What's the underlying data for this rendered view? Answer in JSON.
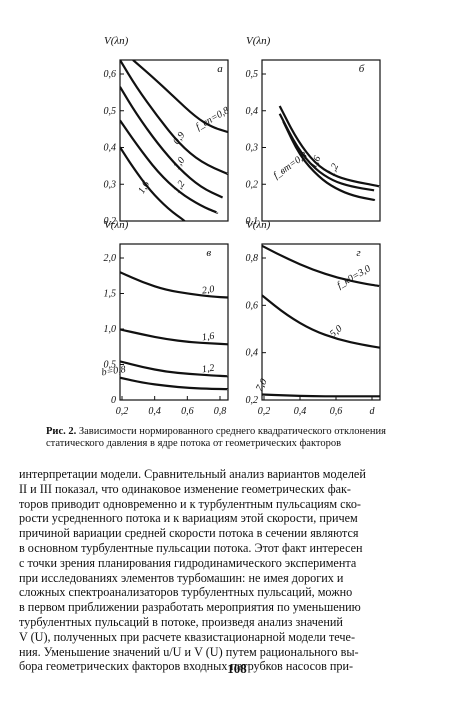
{
  "chart_data": [
    {
      "type": "line",
      "panel": "a",
      "ylabel": "V(λп)",
      "y_ticks": [
        "0,6",
        "0,5",
        "0,4",
        "0,3",
        "0,2"
      ],
      "ylim": [
        0.2,
        0.68
      ],
      "x_ticks": [],
      "xlim": [
        0.0,
        1.0
      ],
      "series": [
        {
          "name": "f_вп=0,8",
          "label": "f_вп=0,8",
          "x": [
            0.12,
            0.3,
            0.5,
            0.7,
            0.85,
            1.0
          ],
          "y": [
            0.68,
            0.63,
            0.57,
            0.51,
            0.48,
            0.465
          ]
        },
        {
          "name": "0,9",
          "label": "0,9",
          "x": [
            0.0,
            0.15,
            0.35,
            0.55,
            0.75,
            1.0
          ],
          "y": [
            0.68,
            0.6,
            0.51,
            0.43,
            0.375,
            0.34
          ]
        },
        {
          "name": "1,0",
          "label": "1,0",
          "x": [
            0.0,
            0.15,
            0.35,
            0.55,
            0.75,
            0.95
          ],
          "y": [
            0.6,
            0.52,
            0.43,
            0.355,
            0.3,
            0.27
          ]
        },
        {
          "name": "1,2",
          "label": "1,2",
          "x": [
            0.0,
            0.15,
            0.35,
            0.55,
            0.75,
            0.9
          ],
          "y": [
            0.5,
            0.43,
            0.345,
            0.285,
            0.245,
            0.225
          ]
        },
        {
          "name": "1,6",
          "label": "1,6",
          "x": [
            0.0,
            0.12,
            0.28,
            0.45,
            0.6
          ],
          "y": [
            0.42,
            0.36,
            0.29,
            0.235,
            0.2
          ]
        }
      ]
    },
    {
      "type": "line",
      "panel": "б",
      "ylabel": "V(λп)",
      "y_ticks": [
        "0,5",
        "0,4",
        "0,3",
        "0,2",
        "0,1"
      ],
      "ylim": [
        0.1,
        0.52
      ],
      "x_ticks": [],
      "xlim": [
        0.0,
        1.0
      ],
      "series": [
        {
          "name": "1,2",
          "label": "1,2",
          "x": [
            0.15,
            0.3,
            0.45,
            0.6,
            0.75,
            1.0
          ],
          "y": [
            0.4,
            0.31,
            0.25,
            0.22,
            0.205,
            0.19
          ]
        },
        {
          "name": "1,6",
          "label": "1,6",
          "x": [
            0.15,
            0.3,
            0.45,
            0.6,
            0.75,
            0.95
          ],
          "y": [
            0.38,
            0.29,
            0.235,
            0.205,
            0.19,
            0.18
          ]
        },
        {
          "name": "f_вт=0,8",
          "label": "f_вт=0,8",
          "x": [
            0.18,
            0.32,
            0.48,
            0.62,
            0.78,
            0.95
          ],
          "y": [
            0.36,
            0.27,
            0.215,
            0.185,
            0.165,
            0.155
          ]
        }
      ]
    },
    {
      "type": "line",
      "panel": "в",
      "ylabel": "V(λп)",
      "y_ticks": [
        "2,0",
        "1,5",
        "1,0",
        "0,5",
        "0"
      ],
      "ylim": [
        0,
        2.1
      ],
      "x_ticks": [
        "0,2",
        "0,4",
        "0,6",
        "0,8"
      ],
      "xlim": [
        0.15,
        0.85
      ],
      "series": [
        {
          "name": "2,0",
          "label": "2,0",
          "x": [
            0.15,
            0.3,
            0.45,
            0.6,
            0.75,
            0.85
          ],
          "y": [
            1.72,
            1.58,
            1.48,
            1.43,
            1.39,
            1.38
          ]
        },
        {
          "name": "1,6",
          "label": "1,6",
          "x": [
            0.15,
            0.3,
            0.45,
            0.6,
            0.75,
            0.85
          ],
          "y": [
            0.95,
            0.88,
            0.82,
            0.78,
            0.76,
            0.75
          ]
        },
        {
          "name": "1,2",
          "label": "1,2",
          "x": [
            0.15,
            0.3,
            0.45,
            0.6,
            0.75,
            0.85
          ],
          "y": [
            0.52,
            0.44,
            0.38,
            0.35,
            0.33,
            0.32
          ]
        },
        {
          "name": "b=0,8",
          "label": "b=0,8",
          "x": [
            0.15,
            0.3,
            0.45,
            0.6,
            0.75,
            0.85
          ],
          "y": [
            0.3,
            0.23,
            0.19,
            0.16,
            0.15,
            0.145
          ]
        }
      ]
    },
    {
      "type": "line",
      "panel": "г",
      "ylabel": "V(λп)",
      "y_ticks": [
        "0,8",
        "0,6",
        "0,4",
        "0,2"
      ],
      "ylim": [
        0,
        0.85
      ],
      "x_ticks": [
        "0,2",
        "0,4",
        "0,6",
        "d"
      ],
      "xlim": [
        0.15,
        0.85
      ],
      "series": [
        {
          "name": "f_к0=3,0",
          "label": "f_к0=3,0",
          "x": [
            0.15,
            0.3,
            0.45,
            0.6,
            0.75,
            0.85
          ],
          "y": [
            0.84,
            0.77,
            0.71,
            0.665,
            0.635,
            0.62
          ]
        },
        {
          "name": "5,0",
          "label": "5,0",
          "x": [
            0.15,
            0.3,
            0.45,
            0.6,
            0.75,
            0.85
          ],
          "y": [
            0.57,
            0.46,
            0.38,
            0.33,
            0.3,
            0.285
          ]
        },
        {
          "name": "7,0",
          "label": "7,0",
          "x": [
            0.15,
            0.3,
            0.45,
            0.6,
            0.75,
            0.85
          ],
          "y": [
            0.03,
            0.025,
            0.02,
            0.02,
            0.02,
            0.02
          ]
        }
      ]
    }
  ],
  "caption": {
    "prefix": "Рис. 2.",
    "text": "Зависимости нормированного среднего квадратического отклонения статического давления в ядре потока от геометрических факторов"
  },
  "body": {
    "lines": [
      "интерпретации модели. Сравнительный анализ вариантов моделей",
      "II и III показал, что одинаковое изменение геометрических фак-",
      "торов приводит одновременно и к турбулентным пульсациям ско-",
      "рости усредненного потока и к вариациям этой скорости, причем",
      "причиной вариации средней скорости потока в сечении являются",
      "в основном турбулентные пульсации потока. Этот факт интересен",
      "с точки зрения планирования гидродинамического эксперимента",
      "при исследованиях элементов турбомашин: не имея дорогих и",
      "сложных спектроанализаторов турбулентных пульсаций, можно",
      "в первом приближении разработать мероприятия по уменьшению",
      "турбулентных пульсаций в потоке, произведя анализ значений",
      "V (U), полученных при расчете квазистационарной модели тече-",
      "ния. Уменьшение значений u/U и V (U) путем рационального вы-",
      "бора геометрических факторов входных патрубков насосов при-"
    ]
  },
  "page_number": "108"
}
